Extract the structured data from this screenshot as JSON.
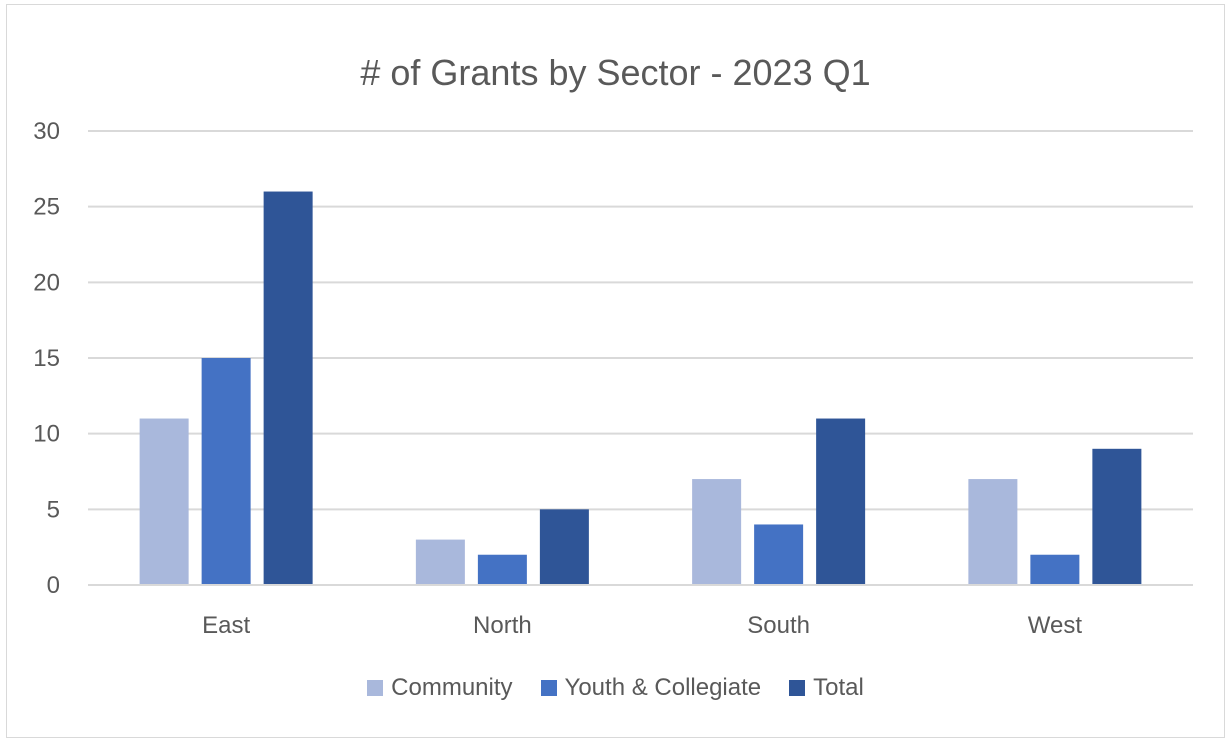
{
  "chart_data": {
    "type": "bar",
    "title": "# of Grants by Sector - 2023 Q1",
    "categories": [
      "East",
      "North",
      "South",
      "West"
    ],
    "series": [
      {
        "name": "Community",
        "color": "#a9b8dc",
        "values": [
          11,
          3,
          7,
          7
        ]
      },
      {
        "name": "Youth & Collegiate",
        "color": "#4472c4",
        "values": [
          15,
          2,
          4,
          2
        ]
      },
      {
        "name": "Total",
        "color": "#2f5597",
        "values": [
          26,
          5,
          11,
          9
        ]
      }
    ],
    "yticks": [
      "0",
      "5",
      "10",
      "15",
      "20",
      "25",
      "30"
    ],
    "ylim": [
      0,
      30
    ],
    "grid": true,
    "legend_position": "bottom"
  }
}
